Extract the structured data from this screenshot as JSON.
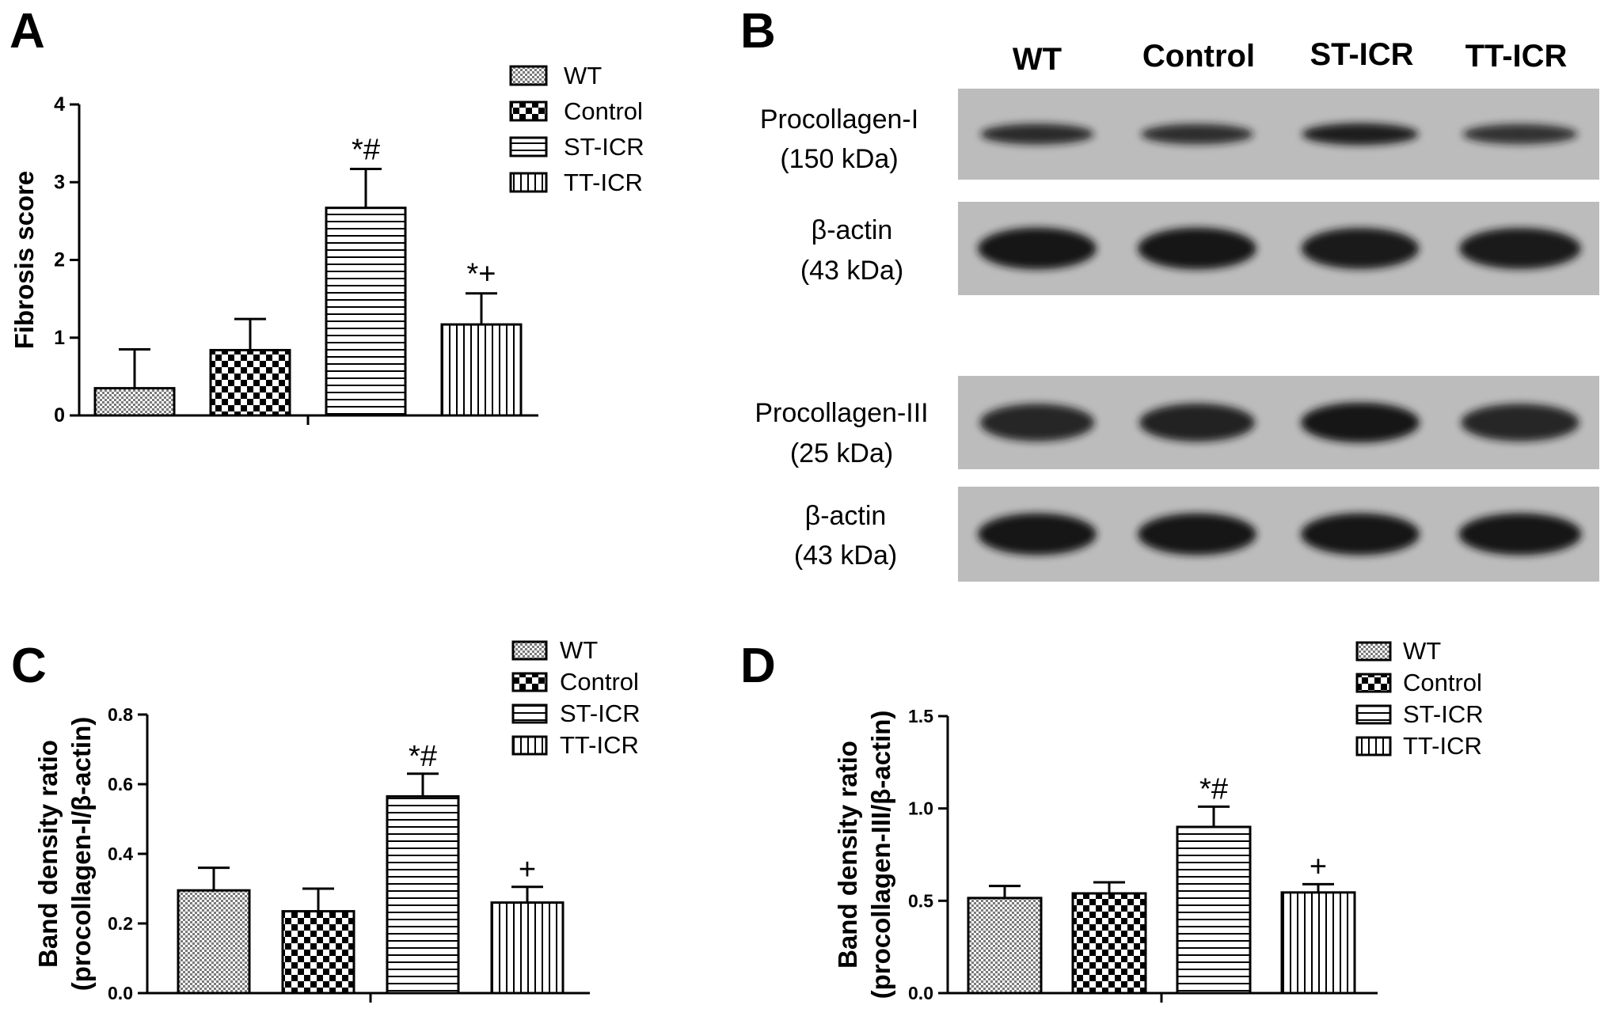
{
  "panels": {
    "A": "A",
    "B": "B",
    "C": "C",
    "D": "D"
  },
  "colors": {
    "ink": "#000000",
    "blot_background": "#bcbcbc",
    "band": "#141414"
  },
  "legend_entries": [
    "WT",
    "Control",
    "ST-ICR",
    "TT-ICR"
  ],
  "chart_data": [
    {
      "panel": "A",
      "type": "bar",
      "categories": [
        "WT",
        "Control",
        "ST-ICR",
        "TT-ICR"
      ],
      "values": [
        0.35,
        0.84,
        2.67,
        1.17
      ],
      "errors": [
        0.5,
        0.4,
        0.5,
        0.4
      ],
      "annotations": [
        "",
        "",
        "*#",
        "*+"
      ],
      "ylabel": "Fibrosis score",
      "ylabel_lines": [
        "Fibrosis score"
      ],
      "ylim": [
        0,
        4
      ],
      "yticks": [
        0,
        1,
        2,
        3,
        4
      ],
      "ytick_labels": [
        "0",
        "1",
        "2",
        "3",
        "4"
      ],
      "legend": "top-right",
      "grid": false
    },
    {
      "panel": "C",
      "type": "bar",
      "categories": [
        "WT",
        "Control",
        "ST-ICR",
        "TT-ICR"
      ],
      "values": [
        0.295,
        0.235,
        0.565,
        0.26
      ],
      "errors": [
        0.065,
        0.065,
        0.065,
        0.045
      ],
      "annotations": [
        "",
        "",
        "*#",
        "+"
      ],
      "ylabel": "Band density ratio (procollagen-I/β-actin)",
      "ylabel_lines": [
        "Band density ratio",
        "(procollagen-I/β-actin)"
      ],
      "ylim": [
        0,
        0.8
      ],
      "yticks": [
        0,
        0.2,
        0.4,
        0.6,
        0.8
      ],
      "ytick_labels": [
        "0.0",
        "0.2",
        "0.4",
        "0.6",
        "0.8"
      ],
      "legend": "top-right",
      "grid": false
    },
    {
      "panel": "D",
      "type": "bar",
      "categories": [
        "WT",
        "Control",
        "ST-ICR",
        "TT-ICR"
      ],
      "values": [
        0.515,
        0.54,
        0.9,
        0.545
      ],
      "errors": [
        0.065,
        0.06,
        0.11,
        0.045
      ],
      "annotations": [
        "",
        "",
        "*#",
        "+"
      ],
      "ylabel": "Band density ratio (procollagen-III/β-actin)",
      "ylabel_lines": [
        "Band density ratio",
        "(procollagen-III/β-actin)"
      ],
      "ylim": [
        0,
        1.5
      ],
      "yticks": [
        0,
        0.5,
        1.0,
        1.5
      ],
      "ytick_labels": [
        "0.0",
        "0.5",
        "1.0",
        "1.5"
      ],
      "legend": "top-right",
      "grid": false
    }
  ],
  "western_blot": {
    "lanes": [
      "WT",
      "Control",
      "ST-ICR",
      "TT-ICR"
    ],
    "blots": [
      {
        "name": "Procollagen-I",
        "size": "(150 kDa)",
        "intensity": [
          0.75,
          0.7,
          0.9,
          0.65
        ]
      },
      {
        "name": "β-actin",
        "size": "(43 kDa)",
        "intensity": [
          1.0,
          1.0,
          0.95,
          0.95
        ]
      },
      {
        "name": "Procollagen-III",
        "size": "(25 kDa)",
        "intensity": [
          0.8,
          0.85,
          1.0,
          0.8
        ]
      },
      {
        "name": "β-actin",
        "size": "(43 kDa)",
        "intensity": [
          1.0,
          1.0,
          1.0,
          1.0
        ]
      }
    ]
  }
}
